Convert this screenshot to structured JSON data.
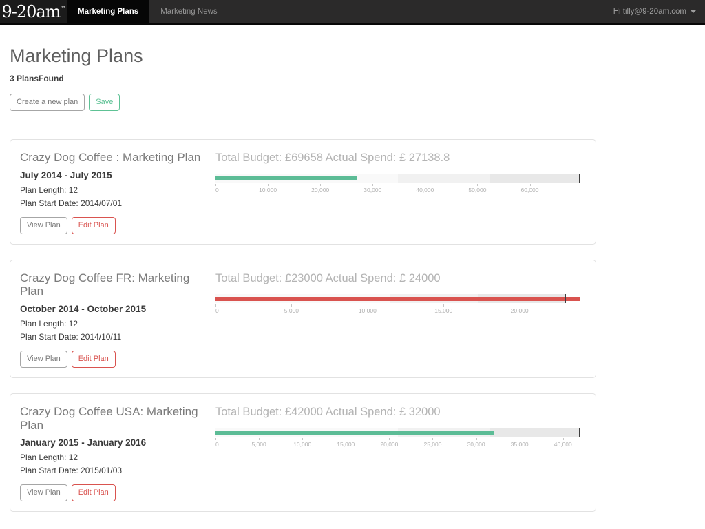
{
  "navbar": {
    "logo_text": "9-20am",
    "logo_tm": "™",
    "tabs": [
      {
        "label": "Marketing Plans",
        "active": true
      },
      {
        "label": "Marketing News",
        "active": false
      }
    ],
    "user_greeting": "Hi tilly@9-20am.com"
  },
  "header": {
    "title": "Marketing Plans",
    "plans_found": "3 PlansFound",
    "create_button": "Create a new plan",
    "save_button": "Save"
  },
  "colors": {
    "under_budget_bar": "#5cbc96",
    "over_budget_bar": "#d9534f",
    "target_marker": "#3f3f3f",
    "band_light": "#f9f9f9",
    "band_mid": "#f1f1f1",
    "band_dark": "#e8e8e8"
  },
  "cards": [
    {
      "title": "Crazy Dog Coffee : Marketing Plan",
      "date_range": "July 2014 - July 2015",
      "plan_length": "Plan Length: 12",
      "plan_start_date": "Plan Start Date: 2014/07/01",
      "view_button": "View Plan",
      "edit_button": "Edit Plan",
      "budget_line": "Total Budget: £69658 Actual Spend: £ 27138.8"
    },
    {
      "title": "Crazy Dog Coffee FR: Marketing Plan",
      "date_range": "October 2014 - October 2015",
      "plan_length": "Plan Length: 12",
      "plan_start_date": "Plan Start Date: 2014/10/11",
      "view_button": "View Plan",
      "edit_button": "Edit Plan",
      "budget_line": "Total Budget: £23000 Actual Spend: £ 24000"
    },
    {
      "title": "Crazy Dog Coffee USA: Marketing Plan",
      "date_range": "January 2015 - January 2016",
      "plan_length": "Plan Length: 12",
      "plan_start_date": "Plan Start Date: 2015/01/03",
      "view_button": "View Plan",
      "edit_button": "Edit Plan",
      "budget_line": "Total Budget: £42000 Actual Spend: £ 32000"
    }
  ],
  "chart_data": [
    {
      "type": "bullet",
      "plan": "Crazy Dog Coffee : Marketing Plan",
      "currency": "£",
      "budget": 69658,
      "actual_spend": 27138.8,
      "range": [
        0,
        69658
      ],
      "ticks": [
        0,
        10000,
        20000,
        30000,
        40000,
        50000,
        60000
      ],
      "tick_labels": [
        "0",
        "10,000",
        "20,000",
        "30,000",
        "40,000",
        "50,000",
        "60,000"
      ],
      "bands": [
        {
          "from": 0,
          "to": 34829,
          "color": "#f9f9f9"
        },
        {
          "from": 34829,
          "to": 52243.5,
          "color": "#f1f1f1"
        },
        {
          "from": 52243.5,
          "to": 69658,
          "color": "#e8e8e8"
        }
      ],
      "target_marker": 69658,
      "bar_color": "#5cbc96",
      "status": "under_budget"
    },
    {
      "type": "bullet",
      "plan": "Crazy Dog Coffee FR: Marketing Plan",
      "currency": "£",
      "budget": 23000,
      "actual_spend": 24000,
      "range": [
        0,
        24000
      ],
      "ticks": [
        0,
        5000,
        10000,
        15000,
        20000
      ],
      "tick_labels": [
        "0",
        "5,000",
        "10,000",
        "15,000",
        "20,000"
      ],
      "bands": [
        {
          "from": 0,
          "to": 11500,
          "color": "#f9f9f9"
        },
        {
          "from": 11500,
          "to": 17250,
          "color": "#f1f1f1"
        },
        {
          "from": 17250,
          "to": 23000,
          "color": "#e8e8e8"
        }
      ],
      "target_marker": 23000,
      "bar_color": "#d9534f",
      "status": "over_budget"
    },
    {
      "type": "bullet",
      "plan": "Crazy Dog Coffee USA: Marketing Plan",
      "currency": "£",
      "budget": 42000,
      "actual_spend": 32000,
      "range": [
        0,
        42000
      ],
      "ticks": [
        0,
        5000,
        10000,
        15000,
        20000,
        25000,
        30000,
        35000,
        40000
      ],
      "tick_labels": [
        "0",
        "5,000",
        "10,000",
        "15,000",
        "20,000",
        "25,000",
        "30,000",
        "35,000",
        "40,000"
      ],
      "bands": [
        {
          "from": 0,
          "to": 21000,
          "color": "#f9f9f9"
        },
        {
          "from": 21000,
          "to": 31500,
          "color": "#f1f1f1"
        },
        {
          "from": 31500,
          "to": 42000,
          "color": "#e8e8e8"
        }
      ],
      "target_marker": 42000,
      "bar_color": "#5cbc96",
      "status": "under_budget"
    }
  ]
}
